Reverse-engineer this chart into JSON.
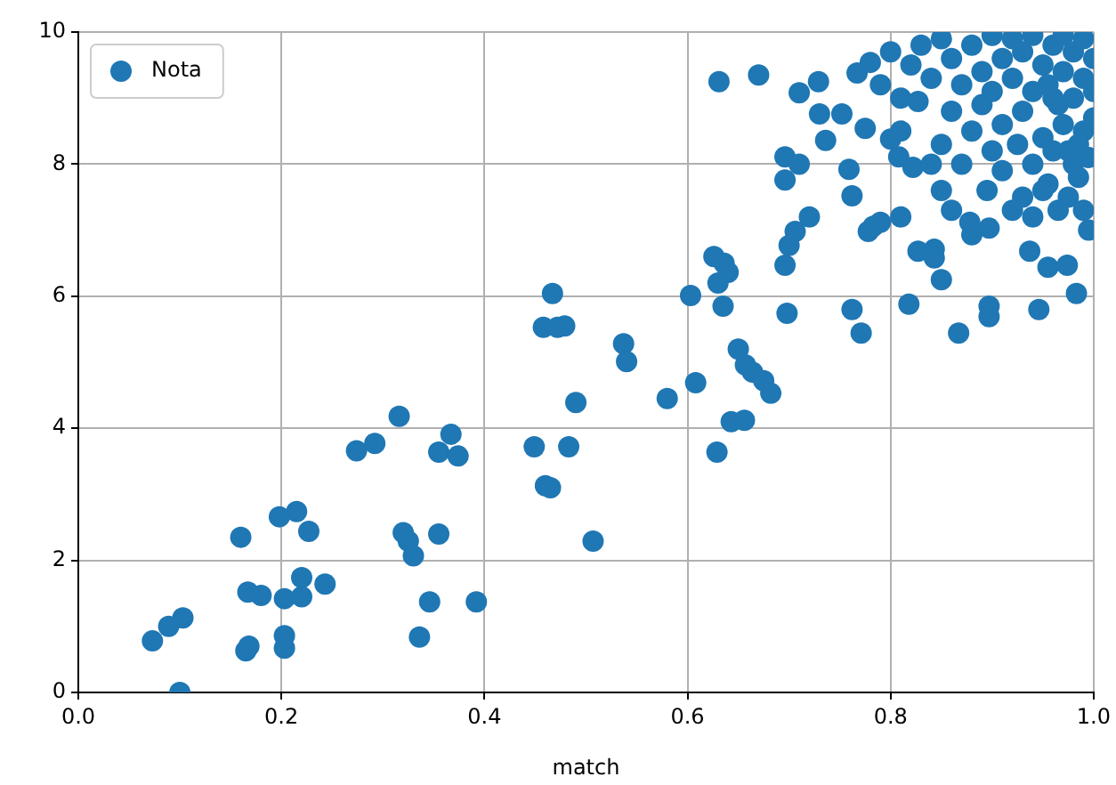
{
  "chart_data": {
    "type": "scatter",
    "xlabel": "match",
    "xlim": [
      0,
      1
    ],
    "xticks": [
      {
        "value": 0,
        "label": "0.0"
      },
      {
        "value": 0.2,
        "label": "0.2"
      },
      {
        "value": 0.4,
        "label": "0.4"
      },
      {
        "value": 0.6,
        "label": "0.6"
      },
      {
        "value": 0.8,
        "label": "0.8"
      },
      {
        "value": 1,
        "label": "1.0"
      }
    ],
    "ylim": [
      0,
      10
    ],
    "yticks": [
      0,
      2,
      4,
      6,
      8,
      10
    ],
    "grid": true,
    "legend": "top left",
    "marker": "circle",
    "series": [
      {
        "name": "Nota",
        "color": "#1f77b4",
        "x": [
          0.073,
          0.089,
          0.103,
          0.1,
          0.16,
          0.167,
          0.18,
          0.165,
          0.168,
          0.203,
          0.198,
          0.215,
          0.227,
          0.22,
          0.22,
          0.243,
          0.203,
          0.203,
          0.274,
          0.292,
          0.316,
          0.32,
          0.325,
          0.33,
          0.336,
          0.355,
          0.367,
          0.374,
          0.355,
          0.346,
          0.392,
          0.449,
          0.46,
          0.465,
          0.483,
          0.507,
          0.49,
          0.458,
          0.467,
          0.472,
          0.479,
          0.537,
          0.54,
          0.58,
          0.608,
          0.603,
          0.629,
          0.626,
          0.636,
          0.63,
          0.64,
          0.635,
          0.643,
          0.656,
          0.65,
          0.657,
          0.664,
          0.675,
          0.682,
          0.698,
          0.696,
          0.631,
          0.67,
          0.706,
          0.7,
          0.696,
          0.696,
          0.71,
          0.71,
          0.73,
          0.72,
          0.736,
          0.729,
          0.752,
          0.759,
          0.767,
          0.78,
          0.762,
          0.775,
          0.8,
          0.808,
          0.827,
          0.822,
          0.778,
          0.783,
          0.79,
          0.762,
          0.771,
          0.81,
          0.818,
          0.827,
          0.843,
          0.843,
          0.85,
          0.867,
          0.878,
          0.88,
          0.897,
          0.897,
          0.897,
          0.937,
          0.946,
          0.955,
          0.983,
          0.974,
          0.85,
          0.86,
          0.87,
          0.88,
          0.89,
          0.89,
          0.9,
          0.9,
          0.91,
          0.91,
          0.92,
          0.92,
          0.93,
          0.93,
          0.94,
          0.94,
          0.95,
          0.95,
          0.96,
          0.96,
          0.97,
          0.97,
          0.97,
          0.98,
          0.98,
          0.99,
          0.99,
          0.99,
          1,
          1,
          1,
          0.995,
          0.98,
          0.96,
          0.955,
          0.94,
          0.93,
          0.925,
          0.91,
          0.9,
          0.895,
          0.88,
          0.87,
          0.86,
          0.85,
          0.84,
          0.83,
          0.82,
          0.81,
          0.8,
          0.79,
          0.81,
          0.84,
          0.85,
          0.86,
          0.92,
          0.94,
          0.95,
          0.965,
          0.975,
          0.985,
          0.995,
          0.99,
          0.965,
          0.955,
          0.985,
          0.975
        ],
        "values": [
          0.78,
          1.0,
          1.13,
          0.0,
          2.35,
          1.52,
          1.47,
          0.63,
          0.7,
          1.42,
          2.66,
          2.74,
          2.44,
          1.74,
          1.45,
          1.64,
          0.86,
          0.67,
          3.66,
          3.77,
          4.18,
          2.42,
          2.29,
          2.07,
          0.84,
          3.64,
          3.91,
          3.58,
          2.4,
          1.37,
          1.37,
          3.72,
          3.13,
          3.1,
          3.72,
          2.29,
          4.39,
          5.53,
          6.04,
          5.53,
          5.55,
          5.28,
          5.01,
          4.45,
          4.69,
          6.01,
          3.64,
          6.6,
          6.5,
          6.2,
          6.36,
          5.85,
          4.1,
          4.12,
          5.2,
          4.96,
          4.85,
          4.72,
          4.53,
          5.74,
          6.47,
          9.25,
          9.35,
          6.98,
          6.77,
          7.76,
          8.11,
          8.0,
          9.08,
          8.76,
          7.2,
          8.36,
          9.25,
          8.76,
          7.92,
          9.38,
          9.54,
          7.52,
          8.54,
          8.38,
          8.11,
          8.95,
          7.95,
          6.98,
          7.06,
          7.12,
          5.8,
          5.44,
          7.2,
          5.88,
          6.68,
          6.71,
          6.58,
          6.25,
          5.44,
          7.12,
          6.93,
          7.03,
          5.85,
          5.69,
          6.68,
          5.8,
          6.44,
          6.04,
          6.47,
          9.9,
          9.6,
          9.2,
          9.8,
          9.4,
          8.9,
          9.95,
          9.1,
          8.6,
          9.6,
          9.9,
          9.3,
          8.8,
          9.7,
          9.95,
          9.1,
          9.5,
          8.4,
          9.8,
          9.0,
          9.95,
          9.4,
          8.6,
          9.7,
          9.0,
          9.9,
          9.3,
          8.5,
          9.6,
          9.1,
          8.7,
          8.1,
          8.0,
          8.2,
          7.7,
          8.0,
          7.5,
          8.3,
          7.9,
          8.2,
          7.6,
          8.5,
          8.0,
          8.8,
          8.3,
          9.3,
          9.8,
          9.5,
          9.0,
          9.7,
          9.2,
          8.5,
          8.0,
          7.6,
          7.3,
          7.3,
          7.2,
          7.6,
          7.3,
          7.5,
          7.8,
          7.0,
          7.3,
          8.9,
          9.2,
          8.3,
          8.2
        ]
      }
    ]
  }
}
